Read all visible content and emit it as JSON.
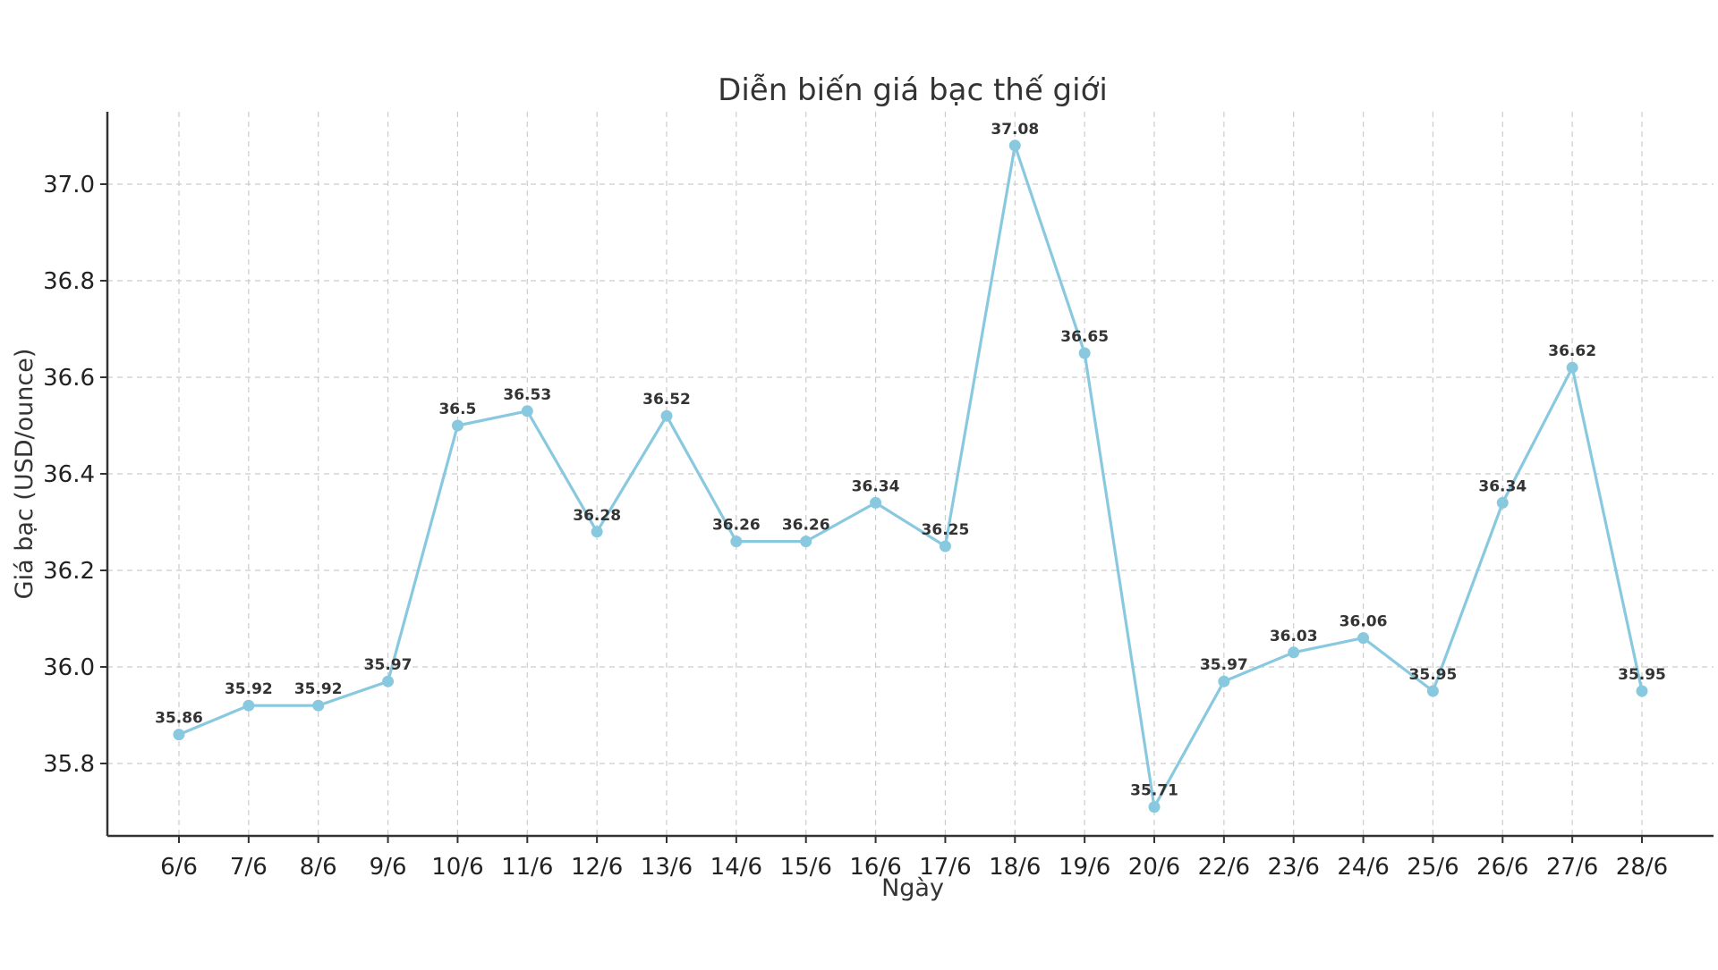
{
  "chart_data": {
    "type": "line",
    "title": "Diễn biến giá bạc thế giới",
    "xlabel": "Ngày",
    "ylabel": "Giá bạc (USD/ounce)",
    "categories": [
      "6/6",
      "7/6",
      "8/6",
      "9/6",
      "10/6",
      "11/6",
      "12/6",
      "13/6",
      "14/6",
      "15/6",
      "16/6",
      "17/6",
      "18/6",
      "19/6",
      "20/6",
      "22/6",
      "23/6",
      "24/6",
      "25/6",
      "26/6",
      "27/6",
      "28/6"
    ],
    "values": [
      35.86,
      35.92,
      35.92,
      35.97,
      36.5,
      36.53,
      36.28,
      36.52,
      36.26,
      36.26,
      36.34,
      36.25,
      37.08,
      36.65,
      35.71,
      35.97,
      36.03,
      36.06,
      35.95,
      36.34,
      36.62,
      35.95
    ],
    "value_labels": [
      "35.86",
      "35.92",
      "35.92",
      "35.97",
      "36.5",
      "36.53",
      "36.28",
      "36.52",
      "36.26",
      "36.26",
      "36.34",
      "36.25",
      "37.08",
      "36.65",
      "35.71",
      "35.97",
      "36.03",
      "36.06",
      "35.95",
      "36.34",
      "36.62",
      "35.95"
    ],
    "ylim": [
      35.65,
      37.15
    ],
    "yticks": [
      35.8,
      36.0,
      36.2,
      36.4,
      36.6,
      36.8,
      37.0
    ],
    "ytick_labels": [
      "35.8",
      "36.0",
      "36.2",
      "36.4",
      "36.6",
      "36.8",
      "37.0"
    ],
    "grid": true,
    "legend": "none",
    "colors": {
      "series": "#89c9e0",
      "axis": "#333333",
      "grid": "#cccccc",
      "text": "#333333"
    }
  }
}
